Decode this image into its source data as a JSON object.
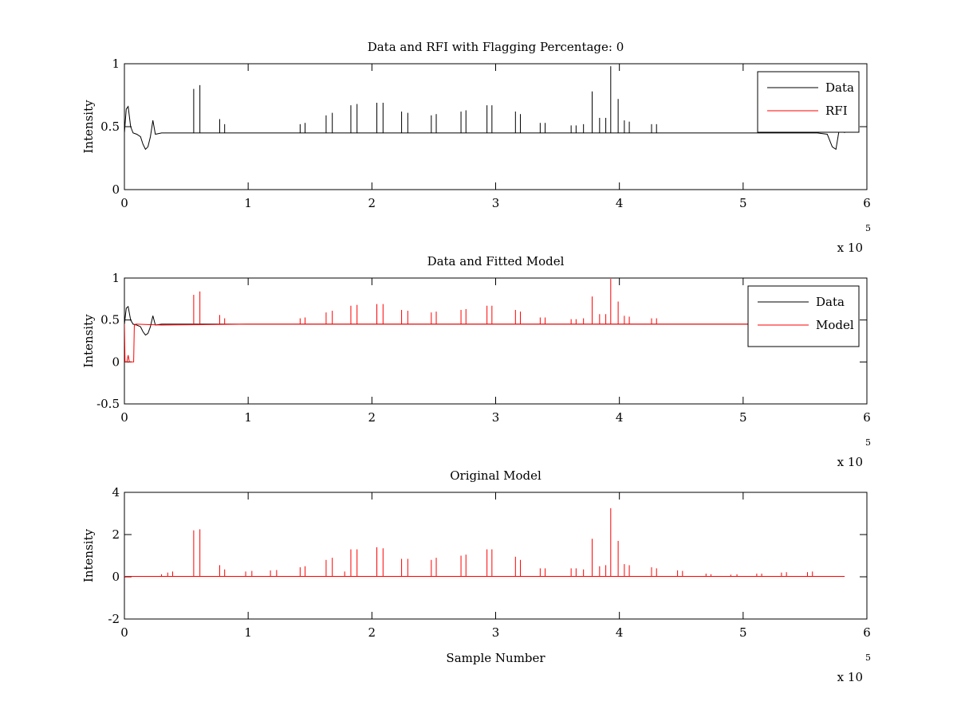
{
  "chart_data": [
    {
      "type": "line",
      "title": "Data and RFI with Flagging Percentage: 0",
      "xlabel": "",
      "ylabel": "Intensity",
      "xlim": [
        0,
        600000
      ],
      "ylim": [
        0,
        1
      ],
      "x_ticks": [
        0,
        1,
        2,
        3,
        4,
        5,
        6
      ],
      "y_ticks": [
        "0",
        "0.5",
        "1"
      ],
      "y_tick_values": [
        0,
        0.5,
        1
      ],
      "exponent_label": "x 10",
      "exponent_power": "5",
      "legend": {
        "placement": "top-right",
        "entries": [
          {
            "label": "Data",
            "color": "#000000"
          },
          {
            "label": "RFI",
            "color": "#ff0000"
          }
        ]
      },
      "baseline": 0.45,
      "series": [
        {
          "name": "Data",
          "color": "#000000",
          "x": [
            0,
            1500,
            3000,
            5000,
            7000,
            10000,
            13000,
            15000,
            17000,
            19000,
            21000,
            23000,
            25000,
            30000,
            100000,
            200000,
            300000,
            400000,
            500000,
            560000,
            568000,
            572000,
            575000,
            578000,
            580000,
            582000
          ],
          "y": [
            0.45,
            0.64,
            0.66,
            0.5,
            0.45,
            0.44,
            0.42,
            0.36,
            0.32,
            0.34,
            0.42,
            0.55,
            0.44,
            0.45,
            0.45,
            0.45,
            0.45,
            0.45,
            0.45,
            0.45,
            0.44,
            0.34,
            0.32,
            0.5,
            0.51,
            0.45
          ],
          "spikes": [
            {
              "x": 56000,
              "y": 0.8
            },
            {
              "x": 61000,
              "y": 0.83
            },
            {
              "x": 77000,
              "y": 0.56
            },
            {
              "x": 81000,
              "y": 0.52
            },
            {
              "x": 142000,
              "y": 0.52
            },
            {
              "x": 146000,
              "y": 0.53
            },
            {
              "x": 163000,
              "y": 0.59
            },
            {
              "x": 168000,
              "y": 0.61
            },
            {
              "x": 183000,
              "y": 0.67
            },
            {
              "x": 188000,
              "y": 0.68
            },
            {
              "x": 204000,
              "y": 0.69
            },
            {
              "x": 209000,
              "y": 0.69
            },
            {
              "x": 224000,
              "y": 0.62
            },
            {
              "x": 229000,
              "y": 0.61
            },
            {
              "x": 248000,
              "y": 0.59
            },
            {
              "x": 252000,
              "y": 0.6
            },
            {
              "x": 272000,
              "y": 0.62
            },
            {
              "x": 276000,
              "y": 0.63
            },
            {
              "x": 293000,
              "y": 0.67
            },
            {
              "x": 297000,
              "y": 0.67
            },
            {
              "x": 316000,
              "y": 0.62
            },
            {
              "x": 320000,
              "y": 0.6
            },
            {
              "x": 336000,
              "y": 0.53
            },
            {
              "x": 340000,
              "y": 0.53
            },
            {
              "x": 361000,
              "y": 0.51
            },
            {
              "x": 365000,
              "y": 0.51
            },
            {
              "x": 371000,
              "y": 0.52
            },
            {
              "x": 378000,
              "y": 0.78
            },
            {
              "x": 384000,
              "y": 0.57
            },
            {
              "x": 389000,
              "y": 0.57
            },
            {
              "x": 393000,
              "y": 0.98
            },
            {
              "x": 399000,
              "y": 0.72
            },
            {
              "x": 404000,
              "y": 0.55
            },
            {
              "x": 408000,
              "y": 0.54
            },
            {
              "x": 426000,
              "y": 0.52
            },
            {
              "x": 430000,
              "y": 0.52
            }
          ]
        }
      ]
    },
    {
      "type": "line",
      "title": "Data and Fitted Model",
      "xlabel": "",
      "ylabel": "Intensity",
      "xlim": [
        0,
        600000
      ],
      "ylim": [
        -0.5,
        1
      ],
      "x_ticks": [
        0,
        1,
        2,
        3,
        4,
        5,
        6
      ],
      "y_ticks": [
        "-0.5",
        "0",
        "0.5",
        "1"
      ],
      "y_tick_values": [
        -0.5,
        0,
        0.5,
        1
      ],
      "exponent_label": "x 10",
      "exponent_power": "5",
      "legend": {
        "placement": "top-right",
        "entries": [
          {
            "label": "Data",
            "color": "#000000"
          },
          {
            "label": "Model",
            "color": "#ff0000"
          }
        ]
      },
      "baseline": 0.45,
      "series": [
        {
          "name": "Data",
          "color": "#000000",
          "x": [
            0,
            1500,
            3000,
            5000,
            7000,
            10000,
            13000,
            15000,
            17000,
            19000,
            21000,
            23000,
            25000,
            30000,
            100000,
            200000,
            300000,
            400000,
            500000,
            560000,
            568000,
            572000,
            575000,
            578000,
            580000,
            582000
          ],
          "y": [
            0.45,
            0.64,
            0.66,
            0.5,
            0.45,
            0.44,
            0.42,
            0.36,
            0.32,
            0.34,
            0.42,
            0.55,
            0.44,
            0.45,
            0.45,
            0.45,
            0.45,
            0.45,
            0.45,
            0.45,
            0.44,
            0.34,
            0.32,
            0.5,
            0.51,
            0.45
          ],
          "spikes": []
        },
        {
          "name": "Model",
          "color": "#ff0000",
          "x": [
            0,
            500,
            1000,
            2000,
            3000,
            4000,
            5000,
            6000,
            7500,
            8000,
            9000,
            10000,
            30000,
            100000,
            200000,
            300000,
            400000,
            500000,
            582000
          ],
          "y": [
            0.45,
            0,
            0,
            0,
            0.08,
            0,
            0,
            0,
            0,
            0.43,
            0.45,
            0.45,
            0.44,
            0.45,
            0.45,
            0.45,
            0.45,
            0.45,
            0.45
          ],
          "spikes": [
            {
              "x": 56000,
              "y": 0.8
            },
            {
              "x": 61000,
              "y": 0.84
            },
            {
              "x": 77000,
              "y": 0.56
            },
            {
              "x": 81000,
              "y": 0.52
            },
            {
              "x": 142000,
              "y": 0.52
            },
            {
              "x": 146000,
              "y": 0.53
            },
            {
              "x": 163000,
              "y": 0.59
            },
            {
              "x": 168000,
              "y": 0.61
            },
            {
              "x": 183000,
              "y": 0.67
            },
            {
              "x": 188000,
              "y": 0.68
            },
            {
              "x": 204000,
              "y": 0.69
            },
            {
              "x": 209000,
              "y": 0.69
            },
            {
              "x": 224000,
              "y": 0.62
            },
            {
              "x": 229000,
              "y": 0.61
            },
            {
              "x": 248000,
              "y": 0.59
            },
            {
              "x": 252000,
              "y": 0.6
            },
            {
              "x": 272000,
              "y": 0.62
            },
            {
              "x": 276000,
              "y": 0.63
            },
            {
              "x": 293000,
              "y": 0.67
            },
            {
              "x": 297000,
              "y": 0.67
            },
            {
              "x": 316000,
              "y": 0.62
            },
            {
              "x": 320000,
              "y": 0.6
            },
            {
              "x": 336000,
              "y": 0.53
            },
            {
              "x": 340000,
              "y": 0.53
            },
            {
              "x": 361000,
              "y": 0.51
            },
            {
              "x": 365000,
              "y": 0.51
            },
            {
              "x": 371000,
              "y": 0.52
            },
            {
              "x": 378000,
              "y": 0.78
            },
            {
              "x": 384000,
              "y": 0.57
            },
            {
              "x": 389000,
              "y": 0.57
            },
            {
              "x": 393000,
              "y": 0.99
            },
            {
              "x": 399000,
              "y": 0.72
            },
            {
              "x": 404000,
              "y": 0.55
            },
            {
              "x": 408000,
              "y": 0.54
            },
            {
              "x": 426000,
              "y": 0.52
            },
            {
              "x": 430000,
              "y": 0.52
            }
          ]
        }
      ]
    },
    {
      "type": "line",
      "title": "Original Model",
      "xlabel": "Sample Number",
      "ylabel": "Intensity",
      "xlim": [
        0,
        600000
      ],
      "ylim": [
        -2,
        4
      ],
      "x_ticks": [
        0,
        1,
        2,
        3,
        4,
        5,
        6
      ],
      "y_ticks": [
        "-2",
        "0",
        "2",
        "4"
      ],
      "y_tick_values": [
        -2,
        0,
        2,
        4
      ],
      "exponent_label": "x 10",
      "exponent_power": "5",
      "legend": null,
      "baseline": 0.02,
      "series": [
        {
          "name": "",
          "color": "#ff0000",
          "x": [
            0,
            582000
          ],
          "y": [
            0.02,
            0.02
          ],
          "spikes": [
            {
              "x": 30000,
              "y": 0.12
            },
            {
              "x": 35000,
              "y": 0.2
            },
            {
              "x": 39000,
              "y": 0.25
            },
            {
              "x": 56000,
              "y": 2.2
            },
            {
              "x": 61000,
              "y": 2.25
            },
            {
              "x": 77000,
              "y": 0.55
            },
            {
              "x": 81000,
              "y": 0.35
            },
            {
              "x": 98000,
              "y": 0.25
            },
            {
              "x": 103000,
              "y": 0.28
            },
            {
              "x": 118000,
              "y": 0.3
            },
            {
              "x": 123000,
              "y": 0.32
            },
            {
              "x": 142000,
              "y": 0.45
            },
            {
              "x": 146000,
              "y": 0.5
            },
            {
              "x": 163000,
              "y": 0.8
            },
            {
              "x": 168000,
              "y": 0.9
            },
            {
              "x": 178000,
              "y": 0.25
            },
            {
              "x": 183000,
              "y": 1.3
            },
            {
              "x": 188000,
              "y": 1.3
            },
            {
              "x": 204000,
              "y": 1.4
            },
            {
              "x": 209000,
              "y": 1.35
            },
            {
              "x": 224000,
              "y": 0.85
            },
            {
              "x": 229000,
              "y": 0.85
            },
            {
              "x": 248000,
              "y": 0.8
            },
            {
              "x": 252000,
              "y": 0.9
            },
            {
              "x": 272000,
              "y": 1.0
            },
            {
              "x": 276000,
              "y": 1.05
            },
            {
              "x": 293000,
              "y": 1.3
            },
            {
              "x": 297000,
              "y": 1.3
            },
            {
              "x": 316000,
              "y": 0.95
            },
            {
              "x": 320000,
              "y": 0.8
            },
            {
              "x": 336000,
              "y": 0.4
            },
            {
              "x": 340000,
              "y": 0.4
            },
            {
              "x": 361000,
              "y": 0.4
            },
            {
              "x": 365000,
              "y": 0.4
            },
            {
              "x": 371000,
              "y": 0.35
            },
            {
              "x": 378000,
              "y": 1.8
            },
            {
              "x": 384000,
              "y": 0.5
            },
            {
              "x": 389000,
              "y": 0.55
            },
            {
              "x": 393000,
              "y": 3.25
            },
            {
              "x": 399000,
              "y": 1.7
            },
            {
              "x": 404000,
              "y": 0.6
            },
            {
              "x": 408000,
              "y": 0.55
            },
            {
              "x": 426000,
              "y": 0.45
            },
            {
              "x": 430000,
              "y": 0.4
            },
            {
              "x": 447000,
              "y": 0.3
            },
            {
              "x": 451000,
              "y": 0.28
            },
            {
              "x": 470000,
              "y": 0.15
            },
            {
              "x": 474000,
              "y": 0.12
            },
            {
              "x": 490000,
              "y": 0.1
            },
            {
              "x": 495000,
              "y": 0.12
            },
            {
              "x": 511000,
              "y": 0.15
            },
            {
              "x": 515000,
              "y": 0.15
            },
            {
              "x": 531000,
              "y": 0.2
            },
            {
              "x": 535000,
              "y": 0.22
            },
            {
              "x": 552000,
              "y": 0.22
            },
            {
              "x": 556000,
              "y": 0.25
            }
          ]
        }
      ]
    }
  ]
}
